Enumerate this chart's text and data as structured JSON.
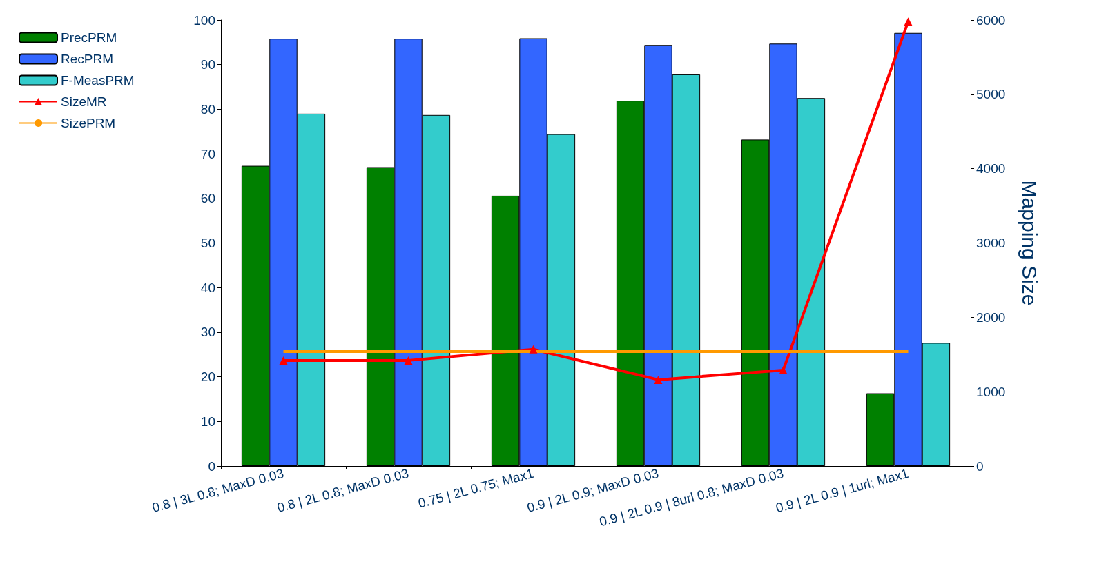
{
  "chart_data": {
    "type": "bar",
    "y2label": "Mapping Size",
    "categories": [
      "0.8 | 3L 0.8; MaxD 0.03",
      "0.8 | 2L 0.8; MaxD 0.03",
      "0.75 | 2L 0.75; Max1",
      "0.9 | 2L 0.9; MaxD 0.03",
      "0.9 | 2L 0.9 | 8url 0.8; MaxD 0.03",
      "0.9 | 2L 0.9 | 1url; Max1"
    ],
    "series": [
      {
        "name": "PrecPRM",
        "color": "#008000",
        "values": [
          67.3,
          67.0,
          60.6,
          81.9,
          73.2,
          16.3
        ]
      },
      {
        "name": "RecPRM",
        "color": "#3366ff",
        "values": [
          95.8,
          95.8,
          95.9,
          94.4,
          94.7,
          97.1
        ]
      },
      {
        "name": "F-MeasPRM",
        "color": "#33cccc",
        "values": [
          79.0,
          78.7,
          74.4,
          87.8,
          82.5,
          27.6
        ]
      },
      {
        "name": "SizeMR",
        "color": "#ff0000",
        "type": "line",
        "axis": "y2",
        "marker": "triangle",
        "values": [
          1420,
          1420,
          1570,
          1160,
          1290,
          5980
        ]
      },
      {
        "name": "SizePRM",
        "color": "#ff9900",
        "type": "line",
        "axis": "y2",
        "marker": "none",
        "values": [
          1540,
          1540,
          1540,
          1540,
          1540,
          1540
        ]
      }
    ],
    "ylim": [
      0,
      100
    ],
    "yticks": [
      0,
      10,
      20,
      30,
      40,
      50,
      60,
      70,
      80,
      90,
      100
    ],
    "y2lim": [
      0,
      6000
    ],
    "y2ticks": [
      0,
      1000,
      2000,
      3000,
      4000,
      5000,
      6000
    ],
    "grid": false,
    "legend": "top left"
  }
}
